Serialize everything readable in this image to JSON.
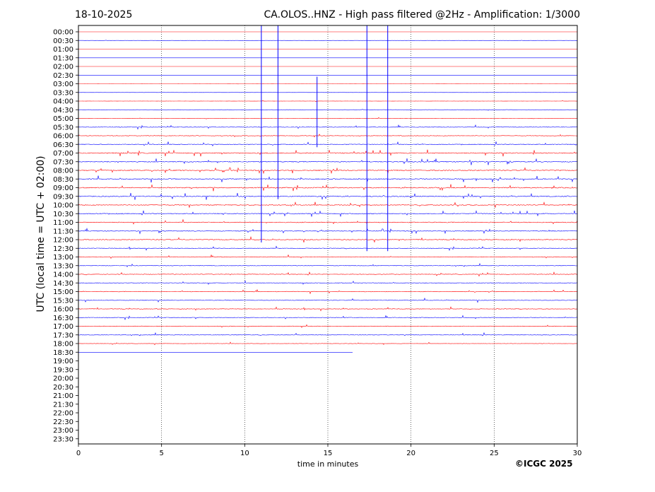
{
  "header": {
    "date": "18-10-2025",
    "title": "CA.OLOS..HNZ - High pass filtered @2Hz - Amplification: 1/3000"
  },
  "copyright": "©ICGC 2025",
  "chart_data": {
    "type": "line",
    "title": "CA.OLOS..HNZ - High pass filtered @2Hz - Amplification: 1/3000",
    "date": "18-10-2025",
    "xlabel": "time in minutes",
    "ylabel": "UTC (local time = UTC + 02:00)",
    "xlim": [
      0,
      30
    ],
    "x_ticks": [
      0,
      5,
      10,
      15,
      20,
      25,
      30
    ],
    "x_tick_labels": [
      "0",
      "5",
      "10",
      "15",
      "20",
      "25",
      "30"
    ],
    "y_tick_labels": [
      "00:00",
      "00:30",
      "01:00",
      "01:30",
      "02:00",
      "02:30",
      "03:00",
      "03:30",
      "04:00",
      "04:30",
      "05:00",
      "05:30",
      "06:00",
      "06:30",
      "07:00",
      "07:30",
      "08:00",
      "08:30",
      "09:00",
      "09:30",
      "10:00",
      "10:30",
      "11:00",
      "11:30",
      "12:00",
      "12:30",
      "13:00",
      "13:30",
      "14:00",
      "14:30",
      "15:00",
      "15:30",
      "16:00",
      "16:30",
      "17:00",
      "17:30",
      "18:00",
      "18:30",
      "19:00",
      "19:30",
      "20:00",
      "20:30",
      "21:00",
      "21:30",
      "22:00",
      "22:30",
      "23:00",
      "23:30"
    ],
    "vertical_gridlines_at_minutes": [
      5,
      10,
      15,
      20,
      25
    ],
    "trace_colors": [
      "#ff0000",
      "#0000ff"
    ],
    "rows_with_data": 38,
    "last_row_end_minute": 16.5,
    "noise_level_by_row": [
      0,
      0.1,
      0,
      0,
      0,
      0,
      0.1,
      0.1,
      0.2,
      0.2,
      0.3,
      0.6,
      0.6,
      0.8,
      1,
      1,
      1,
      1,
      1,
      1,
      0.9,
      0.9,
      0.8,
      0.8,
      0.8,
      0.6,
      0.6,
      0.6,
      0.6,
      0.6,
      0.6,
      0.6,
      0.6,
      0.6,
      0.6,
      0.6,
      0.4,
      0
    ],
    "large_events": [
      {
        "row": "00:00",
        "minute": 11.0,
        "span_rows": 25
      },
      {
        "row": "00:00",
        "minute": 12.0,
        "span_rows": 20
      },
      {
        "row": "03:00",
        "minute": 14.35,
        "span_rows": 8
      },
      {
        "row": "00:00",
        "minute": 17.35,
        "span_rows": 26
      },
      {
        "row": "00:00",
        "minute": 18.6,
        "span_rows": 26
      }
    ]
  }
}
